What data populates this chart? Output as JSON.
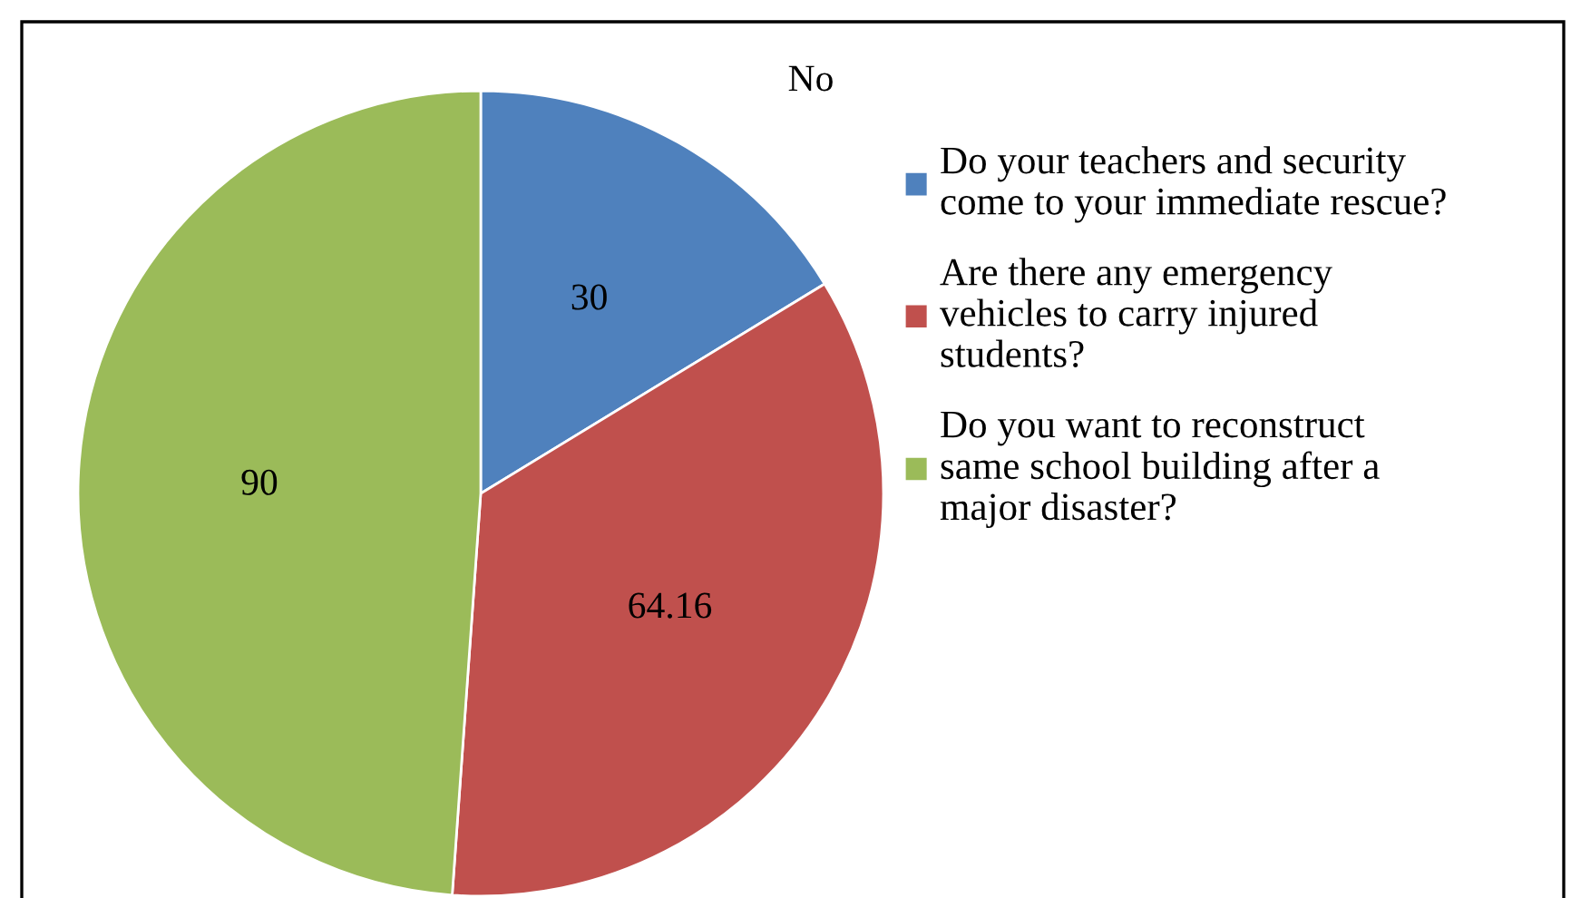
{
  "chart_data": {
    "type": "pie",
    "title": "No",
    "categories": [
      "Do your teachers and security\ncome to your immediate rescue?",
      "Are there any emergency\nvehicles to carry injured\nstudents?",
      "Do you want to reconstruct\nsame school building after a\nmajor disaster?"
    ],
    "values": [
      30,
      64.16,
      90
    ],
    "colors": [
      "#4f81bd",
      "#c0504d",
      "#9bbb59"
    ],
    "data_labels": true,
    "legend": "right"
  }
}
